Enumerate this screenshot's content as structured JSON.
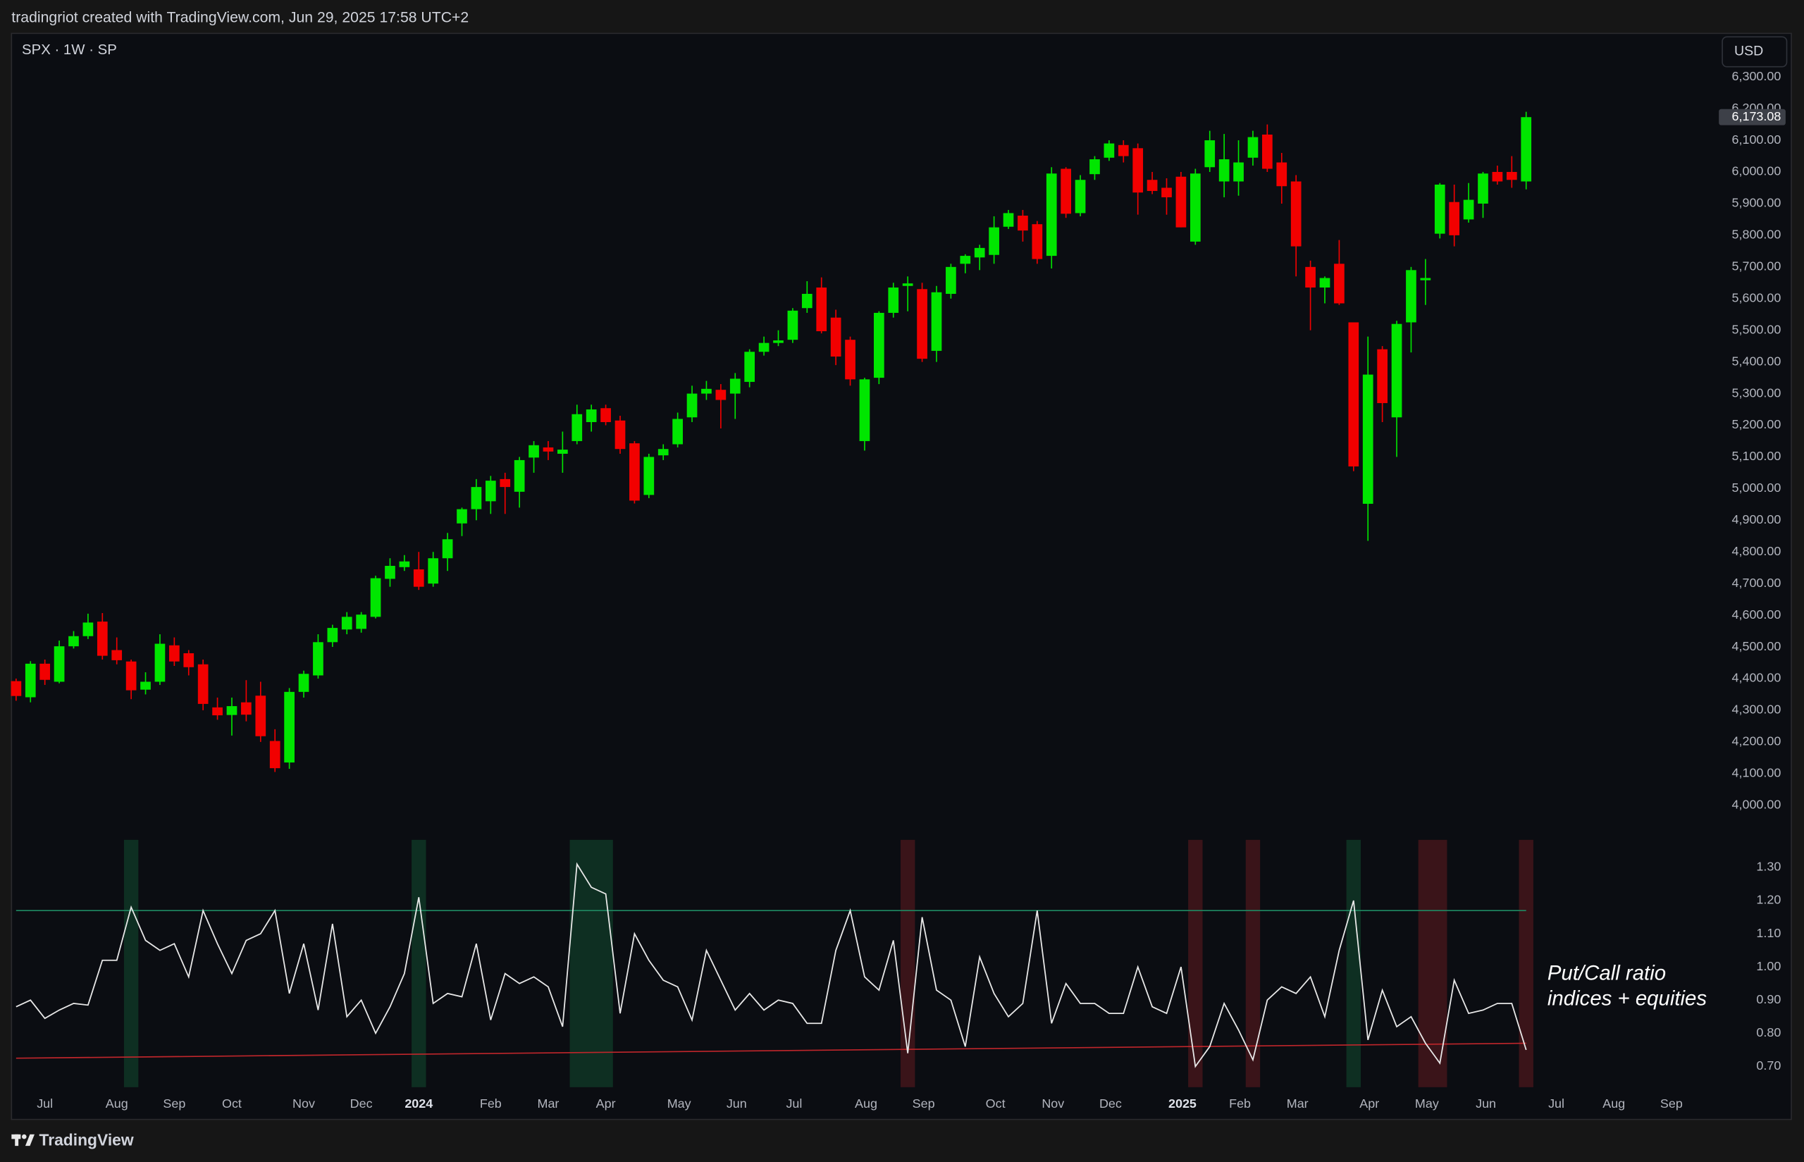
{
  "header": "tradingriot created with TradingView.com, Jun 29, 2025 17:58 UTC+2",
  "footer": "TradingView",
  "chart_data": [
    {
      "type": "candlestick",
      "title": "SPX · 1W · SP",
      "currency": "USD",
      "up_color": "#00e600",
      "down_color": "#f20000",
      "open": [
        4392,
        4341,
        4447,
        4390,
        4502,
        4534,
        4580,
        4490,
        4454,
        4365,
        4390,
        4505,
        4480,
        4445,
        4309,
        4285,
        4325,
        4346,
        4203,
        4135,
        4358,
        4410,
        4515,
        4555,
        4557,
        4595,
        4715,
        4752,
        4745,
        4700,
        4780,
        4890,
        4935,
        4960,
        5030,
        4990,
        5098,
        5130,
        5110,
        5150,
        5210,
        5254,
        5215,
        5143,
        4980,
        5105,
        5140,
        5225,
        5300,
        5312,
        5300,
        5337,
        5432,
        5460,
        5470,
        5570,
        5635,
        5540,
        5470,
        5150,
        5350,
        5555,
        5640,
        5630,
        5435,
        5615,
        5710,
        5730,
        5738,
        5827,
        5862,
        5835,
        5735,
        6010,
        5870,
        5993,
        6045,
        6085,
        6075,
        5975,
        5950,
        5985,
        5780,
        6015,
        5970,
        5970,
        6045,
        6118,
        6030,
        5970,
        5700,
        5635,
        5710,
        5525,
        4952,
        5440,
        5225,
        5525,
        5658,
        5805,
        5905,
        5850,
        5900,
        6000,
        6000,
        5970
      ],
      "high": [
        4400,
        4455,
        4460,
        4520,
        4550,
        4605,
        4607,
        4530,
        4460,
        4420,
        4540,
        4530,
        4490,
        4460,
        4340,
        4340,
        4395,
        4390,
        4240,
        4370,
        4425,
        4540,
        4570,
        4610,
        4610,
        4725,
        4780,
        4790,
        4800,
        4800,
        4860,
        4940,
        5030,
        5040,
        5050,
        5100,
        5150,
        5150,
        5180,
        5265,
        5265,
        5265,
        5230,
        5150,
        5110,
        5140,
        5240,
        5325,
        5340,
        5330,
        5365,
        5440,
        5480,
        5500,
        5570,
        5655,
        5667,
        5565,
        5480,
        5350,
        5560,
        5650,
        5670,
        5650,
        5640,
        5710,
        5740,
        5770,
        5860,
        5880,
        5880,
        5845,
        6015,
        6015,
        5990,
        6050,
        6100,
        6100,
        6090,
        6000,
        5980,
        6000,
        6010,
        6130,
        6120,
        6100,
        6130,
        6150,
        6060,
        5990,
        5720,
        5670,
        5785,
        5525,
        5480,
        5450,
        5530,
        5700,
        5725,
        5965,
        5960,
        5965,
        6000,
        6020,
        6050,
        6190
      ],
      "low": [
        4330,
        4325,
        4380,
        4385,
        4495,
        4525,
        4460,
        4445,
        4335,
        4350,
        4380,
        4440,
        4410,
        4300,
        4270,
        4220,
        4265,
        4200,
        4105,
        4115,
        4340,
        4400,
        4500,
        4540,
        4545,
        4590,
        4690,
        4740,
        4680,
        4690,
        4740,
        4850,
        4900,
        4920,
        4920,
        4940,
        5050,
        5090,
        5050,
        5140,
        5180,
        5200,
        5110,
        4953,
        4970,
        5090,
        5130,
        5210,
        5280,
        5190,
        5220,
        5320,
        5420,
        5450,
        5460,
        5555,
        5490,
        5390,
        5325,
        5120,
        5330,
        5540,
        5560,
        5400,
        5400,
        5600,
        5680,
        5690,
        5710,
        5820,
        5780,
        5710,
        5695,
        5855,
        5860,
        5975,
        6035,
        6030,
        5865,
        5930,
        5865,
        5825,
        5770,
        6000,
        5920,
        5925,
        6020,
        6000,
        5900,
        5670,
        5500,
        5585,
        5580,
        5055,
        4835,
        5210,
        5100,
        5430,
        5580,
        5790,
        5765,
        5840,
        5855,
        5960,
        5950,
        5945
      ],
      "close": [
        4345,
        4447,
        4396,
        4502,
        4534,
        4577,
        4472,
        4458,
        4363,
        4390,
        4510,
        4454,
        4436,
        4320,
        4284,
        4313,
        4286,
        4218,
        4117,
        4358,
        4415,
        4515,
        4560,
        4595,
        4602,
        4717,
        4756,
        4770,
        4690,
        4780,
        4840,
        4935,
        5005,
        5025,
        5005,
        5090,
        5137,
        5117,
        5123,
        5235,
        5250,
        5210,
        5125,
        4962,
        5100,
        5125,
        5220,
        5300,
        5315,
        5280,
        5347,
        5432,
        5460,
        5468,
        5562,
        5615,
        5497,
        5417,
        5345,
        5345,
        5555,
        5635,
        5648,
        5410,
        5620,
        5700,
        5735,
        5760,
        5825,
        5870,
        5815,
        5725,
        5995,
        5868,
        5975,
        6040,
        6090,
        6050,
        5935,
        5940,
        5920,
        5825,
        5995,
        6100,
        6040,
        6030,
        6110,
        6010,
        5955,
        5765,
        5635,
        5665,
        5585,
        5070,
        5360,
        5270,
        5520,
        5690,
        5665,
        5960,
        5800,
        5912,
        5995,
        5970,
        5975,
        6173.08
      ],
      "last_price": {
        "value": 6173.08,
        "label": "6,173.08"
      },
      "ylim": [
        3927,
        6434
      ],
      "yticks": [
        {
          "value": 4000,
          "label": "4,000.00"
        },
        {
          "value": 4100,
          "label": "4,100.00"
        },
        {
          "value": 4200,
          "label": "4,200.00"
        },
        {
          "value": 4300,
          "label": "4,300.00"
        },
        {
          "value": 4400,
          "label": "4,400.00"
        },
        {
          "value": 4500,
          "label": "4,500.00"
        },
        {
          "value": 4600,
          "label": "4,600.00"
        },
        {
          "value": 4700,
          "label": "4,700.00"
        },
        {
          "value": 4800,
          "label": "4,800.00"
        },
        {
          "value": 4900,
          "label": "4,900.00"
        },
        {
          "value": 5000,
          "label": "5,000.00"
        },
        {
          "value": 5100,
          "label": "5,100.00"
        },
        {
          "value": 5200,
          "label": "5,200.00"
        },
        {
          "value": 5300,
          "label": "5,300.00"
        },
        {
          "value": 5400,
          "label": "5,400.00"
        },
        {
          "value": 5500,
          "label": "5,500.00"
        },
        {
          "value": 5600,
          "label": "5,600.00"
        },
        {
          "value": 5700,
          "label": "5,700.00"
        },
        {
          "value": 5800,
          "label": "5,800.00"
        },
        {
          "value": 5900,
          "label": "5,900.00"
        },
        {
          "value": 6000,
          "label": "6,000.00"
        },
        {
          "value": 6100,
          "label": "6,100.00"
        },
        {
          "value": 6200,
          "label": "6,200.00"
        },
        {
          "value": 6300,
          "label": "6,300.00"
        }
      ],
      "xlim": [
        -0.32,
        118.08
      ],
      "xticks": [
        {
          "value": 2,
          "label": "Jul"
        },
        {
          "value": 7,
          "label": "Aug"
        },
        {
          "value": 11,
          "label": "Sep"
        },
        {
          "value": 15,
          "label": "Oct"
        },
        {
          "value": 20,
          "label": "Nov"
        },
        {
          "value": 24,
          "label": "Dec"
        },
        {
          "value": 28,
          "label": "2024"
        },
        {
          "value": 33,
          "label": "Feb"
        },
        {
          "value": 37,
          "label": "Mar"
        },
        {
          "value": 41,
          "label": "Apr"
        },
        {
          "value": 46.1,
          "label": "May"
        },
        {
          "value": 50.1,
          "label": "Jun"
        },
        {
          "value": 54.1,
          "label": "Jul"
        },
        {
          "value": 59.1,
          "label": "Aug"
        },
        {
          "value": 63.1,
          "label": "Sep"
        },
        {
          "value": 68.1,
          "label": "Oct"
        },
        {
          "value": 72.1,
          "label": "Nov"
        },
        {
          "value": 76.1,
          "label": "Dec"
        },
        {
          "value": 81.1,
          "label": "2025"
        },
        {
          "value": 85.1,
          "label": "Feb"
        },
        {
          "value": 89.1,
          "label": "Mar"
        },
        {
          "value": 94.1,
          "label": "Apr"
        },
        {
          "value": 98.1,
          "label": "May"
        },
        {
          "value": 102.2,
          "label": "Jun"
        },
        {
          "value": 107.1,
          "label": "Jul"
        },
        {
          "value": 111.1,
          "label": "Aug"
        },
        {
          "value": 115.1,
          "label": "Sep"
        }
      ]
    },
    {
      "type": "line",
      "annotation": [
        "Put/Call ratio",
        "indices + equities"
      ],
      "color": "#e8e8e8",
      "values": [
        0.88,
        0.9,
        0.845,
        0.87,
        0.89,
        0.885,
        1.02,
        1.02,
        1.18,
        1.08,
        1.05,
        1.07,
        0.97,
        1.17,
        1.07,
        0.98,
        1.08,
        1.1,
        1.17,
        0.92,
        1.07,
        0.87,
        1.13,
        0.85,
        0.9,
        0.8,
        0.88,
        0.98,
        1.21,
        0.89,
        0.92,
        0.91,
        1.07,
        0.84,
        0.98,
        0.95,
        0.97,
        0.94,
        0.82,
        1.31,
        1.24,
        1.22,
        0.86,
        1.1,
        1.02,
        0.96,
        0.94,
        0.84,
        1.05,
        0.96,
        0.87,
        0.92,
        0.87,
        0.9,
        0.89,
        0.83,
        0.83,
        1.05,
        1.17,
        0.97,
        0.93,
        1.08,
        0.74,
        1.15,
        0.93,
        0.9,
        0.76,
        1.03,
        0.92,
        0.85,
        0.89,
        1.17,
        0.83,
        0.95,
        0.89,
        0.89,
        0.86,
        0.86,
        1.0,
        0.88,
        0.86,
        1.0,
        0.7,
        0.76,
        0.89,
        0.81,
        0.72,
        0.9,
        0.94,
        0.92,
        0.97,
        0.85,
        1.05,
        1.2,
        0.78,
        0.93,
        0.82,
        0.85,
        0.77,
        0.71,
        0.96,
        0.86,
        0.87,
        0.89,
        0.89,
        0.75
      ],
      "bands": [
        {
          "x": [
            0,
            105
          ],
          "values": [
            1.17,
            1.17
          ],
          "color": "#1f8a63"
        },
        {
          "x": [
            0,
            105
          ],
          "values": [
            0.725,
            0.77
          ],
          "color": "#c0262b"
        }
      ],
      "highlights": [
        {
          "from": 8,
          "to": 8,
          "color": "#0e2f22"
        },
        {
          "from": 28,
          "to": 28,
          "color": "#0e2f22"
        },
        {
          "from": 39,
          "to": 41,
          "color": "#0e2f22"
        },
        {
          "from": 93,
          "to": 93,
          "color": "#0e2f22"
        },
        {
          "from": 62,
          "to": 62,
          "color": "#3a1419"
        },
        {
          "from": 82,
          "to": 82,
          "color": "#3a1419"
        },
        {
          "from": 86,
          "to": 86,
          "color": "#3a1419"
        },
        {
          "from": 98,
          "to": 99,
          "color": "#3a1419"
        },
        {
          "from": 105,
          "to": 105,
          "color": "#3a1419"
        }
      ],
      "ylim": [
        0.6375,
        1.383
      ],
      "yticks": [
        {
          "value": 0.7,
          "label": "0.70"
        },
        {
          "value": 0.8,
          "label": "0.80"
        },
        {
          "value": 0.9,
          "label": "0.90"
        },
        {
          "value": 1.0,
          "label": "1.00"
        },
        {
          "value": 1.1,
          "label": "1.10"
        },
        {
          "value": 1.2,
          "label": "1.20"
        },
        {
          "value": 1.3,
          "label": "1.30"
        }
      ]
    }
  ]
}
